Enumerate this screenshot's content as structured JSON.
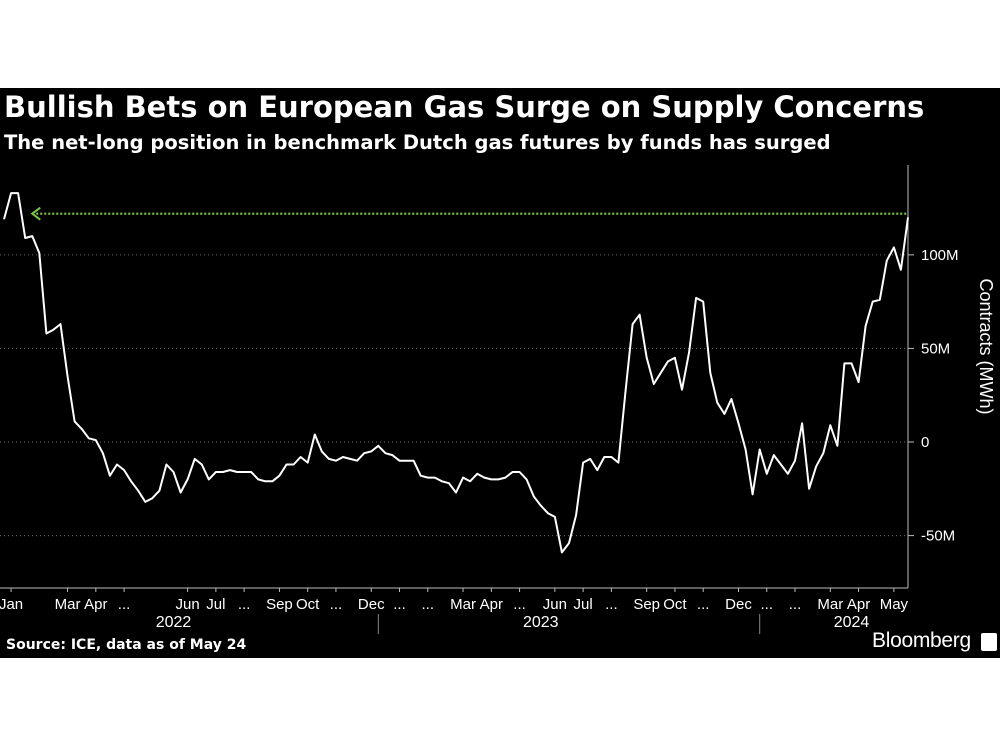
{
  "chart_data": {
    "type": "line",
    "title": "Bullish Bets on European Gas Surge on Supply Concerns",
    "subtitle": "The net-long position in benchmark Dutch gas futures by funds has surged",
    "ylabel": "Contracts (MWh)",
    "xlabel": "",
    "ylim": [
      -78,
      148
    ],
    "y_ticks": [
      {
        "value": 100,
        "label": "100M"
      },
      {
        "value": 50,
        "label": "50M"
      },
      {
        "value": 0,
        "label": "0"
      },
      {
        "value": -50,
        "label": "-50M"
      }
    ],
    "x_ticks": [
      {
        "index": 1,
        "label": "Jan"
      },
      {
        "index": 9,
        "label": "Mar"
      },
      {
        "index": 13,
        "label": "Apr"
      },
      {
        "index": 17,
        "label": "..."
      },
      {
        "index": 26,
        "label": "Jun"
      },
      {
        "index": 30,
        "label": "Jul"
      },
      {
        "index": 34,
        "label": "..."
      },
      {
        "index": 39,
        "label": "Sep"
      },
      {
        "index": 43,
        "label": "Oct"
      },
      {
        "index": 47,
        "label": "..."
      },
      {
        "index": 52,
        "label": "Dec"
      },
      {
        "index": 56,
        "label": "..."
      },
      {
        "index": 60,
        "label": "..."
      },
      {
        "index": 65,
        "label": "Mar"
      },
      {
        "index": 69,
        "label": "Apr"
      },
      {
        "index": 73,
        "label": "..."
      },
      {
        "index": 78,
        "label": "Jun"
      },
      {
        "index": 82,
        "label": "Jul"
      },
      {
        "index": 86,
        "label": "..."
      },
      {
        "index": 91,
        "label": "Sep"
      },
      {
        "index": 95,
        "label": "Oct"
      },
      {
        "index": 99,
        "label": "..."
      },
      {
        "index": 104,
        "label": "Dec"
      },
      {
        "index": 108,
        "label": "..."
      },
      {
        "index": 112,
        "label": "..."
      },
      {
        "index": 117,
        "label": "Mar"
      },
      {
        "index": 121,
        "label": "Apr"
      },
      {
        "index": 126,
        "label": "May"
      }
    ],
    "year_labels": [
      {
        "index": 24,
        "label": "2022"
      },
      {
        "index": 76,
        "label": "2023"
      },
      {
        "index": 120,
        "label": "2024"
      }
    ],
    "year_separators": [
      53,
      107
    ],
    "reference_line": {
      "value": 122,
      "from_index": 4,
      "to_index": 128,
      "color": "#7ac943",
      "style": "dotted"
    },
    "series": [
      {
        "name": "Net-long position",
        "color": "#ffffff",
        "unit": "million MWh",
        "values": [
          119,
          133,
          133,
          109,
          110,
          101,
          58,
          60,
          63,
          35,
          11,
          7,
          2,
          1,
          -6,
          -18,
          -12,
          -15,
          -21,
          -26,
          -32,
          -30,
          -26,
          -12,
          -16,
          -27,
          -20,
          -9,
          -12,
          -20,
          -16,
          -16,
          -15,
          -16,
          -16,
          -16,
          -20,
          -21,
          -21,
          -18,
          -12,
          -12,
          -8,
          -11,
          4,
          -5,
          -9,
          -10,
          -8,
          -9,
          -10,
          -6,
          -5,
          -2,
          -6,
          -7,
          -10,
          -10,
          -10,
          -18,
          -19,
          -19,
          -21,
          -22,
          -27,
          -19,
          -21,
          -17,
          -19,
          -20,
          -20,
          -19,
          -16,
          -16,
          -20,
          -29,
          -34,
          -38,
          -40,
          -59,
          -54,
          -39,
          -11,
          -9,
          -15,
          -8,
          -8,
          -11,
          27,
          63,
          68,
          45,
          31,
          37,
          43,
          45,
          28,
          48,
          77,
          75,
          37,
          21,
          15,
          23,
          10,
          -4,
          -28,
          -4,
          -17,
          -7,
          -12,
          -17,
          -10,
          10,
          -25,
          -13,
          -6,
          9,
          -2,
          42,
          42,
          32,
          62,
          75,
          76,
          97,
          104,
          92,
          120
        ]
      }
    ]
  },
  "footer": {
    "source": "Source: ICE, data as of May 24",
    "brand": "Bloomberg"
  }
}
